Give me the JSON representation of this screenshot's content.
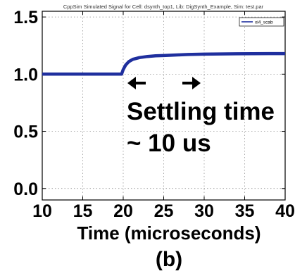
{
  "chart_data": {
    "type": "line",
    "title": "CppSim Simulated Signal for Cell: dsynth_top1, Lib: DigSynth_Example, Sim: test.par",
    "xlabel": "Time (microseconds)",
    "ylabel": "",
    "xlim": [
      10,
      40
    ],
    "ylim": [
      -0.1,
      1.55
    ],
    "x_ticks": [
      "10",
      "15",
      "20",
      "25",
      "30",
      "35",
      "40"
    ],
    "y_ticks": [
      "0.0",
      "0.5",
      "1.0",
      "1.5"
    ],
    "grid": true,
    "legend_position": "top-right",
    "series": [
      {
        "name": "xi4_scab",
        "color": "#1f2f9e",
        "x": [
          10,
          15,
          19.8,
          20.0,
          20.3,
          20.7,
          21.2,
          22,
          23,
          24,
          25,
          26,
          27,
          28,
          30,
          32,
          34,
          36,
          38,
          40
        ],
        "y": [
          1.0,
          1.0,
          1.0,
          1.04,
          1.08,
          1.11,
          1.13,
          1.145,
          1.155,
          1.16,
          1.163,
          1.166,
          1.169,
          1.172,
          1.175,
          1.177,
          1.178,
          1.179,
          1.18,
          1.18
        ]
      }
    ],
    "annotations": [
      {
        "text": "Settling time",
        "arrow": "left",
        "at_x": 20
      },
      {
        "text": "~ 10 us",
        "arrow": "right",
        "at_x": 30
      }
    ]
  },
  "caption": "(b)",
  "colors": {
    "line": "#1f2f9e",
    "grid": "#888888",
    "axes": "#000000"
  }
}
